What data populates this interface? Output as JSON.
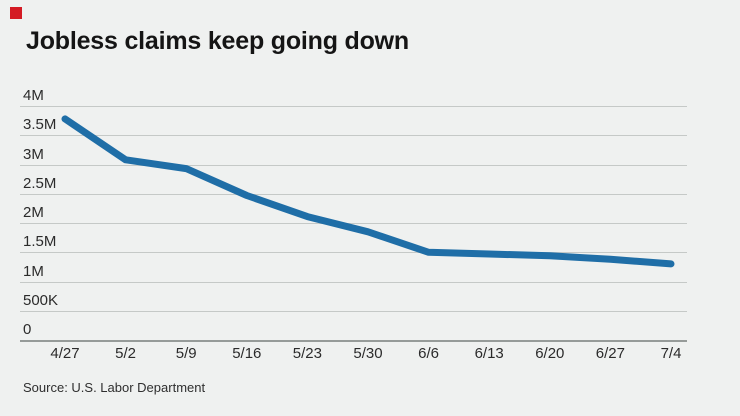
{
  "header": {
    "title": "Jobless claims keep going down"
  },
  "footer": {
    "source": "Source: U.S. Labor Department"
  },
  "colors": {
    "background": "#eff1f0",
    "brand_red": "#d41b24",
    "line_blue": "#1f6ea7",
    "gridline_gray": "#c5c9c7",
    "axis_gray": "#969b99",
    "title_text": "#151515",
    "label_text": "#2b2b2b"
  },
  "chart_data": {
    "type": "line",
    "title": "Jobless claims keep going down",
    "xlabel": "",
    "ylabel": "",
    "x": [
      "4/27",
      "5/2",
      "5/9",
      "5/16",
      "5/23",
      "5/30",
      "6/6",
      "6/13",
      "6/20",
      "6/27",
      "7/4"
    ],
    "values_millions": [
      3.78,
      3.08,
      2.93,
      2.47,
      2.11,
      1.85,
      1.5,
      1.47,
      1.44,
      1.38,
      1.3
    ],
    "ylim": [
      0,
      4
    ],
    "ytick_values": [
      4,
      3.5,
      3,
      2.5,
      2,
      1.5,
      1,
      0.5,
      0
    ],
    "ytick_labels": [
      "4M",
      "3.5M",
      "3M",
      "2.5M",
      "2M",
      "1.5M",
      "1M",
      "500K",
      "0"
    ],
    "grid": "horizontal",
    "legend": "none"
  }
}
